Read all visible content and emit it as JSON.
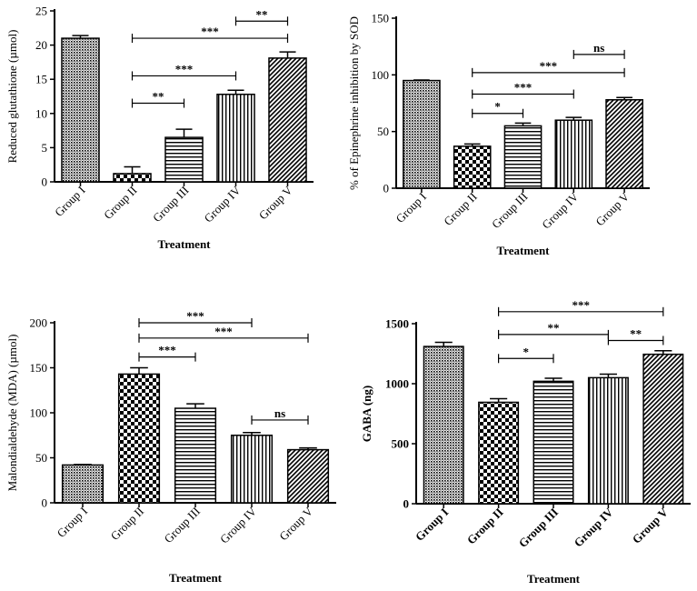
{
  "chart_data": [
    {
      "type": "bar",
      "title": "",
      "xlabel": "Treatment",
      "ylabel": "Reduced glutathione (µmol)",
      "categories": [
        "Group I",
        "Group II",
        "Group III",
        "Group IV",
        "Group V"
      ],
      "values": [
        21.0,
        1.2,
        6.5,
        12.8,
        18.1
      ],
      "errors": [
        0.4,
        1.0,
        1.2,
        0.6,
        0.9
      ],
      "ylim": [
        0,
        25
      ],
      "yticks": [
        0,
        5,
        10,
        15,
        20,
        25
      ],
      "comparisons": [
        {
          "from": 1,
          "to": 2,
          "label": "**",
          "y": 11.5
        },
        {
          "from": 1,
          "to": 3,
          "label": "***",
          "y": 15.5
        },
        {
          "from": 1,
          "to": 4,
          "label": "***",
          "y": 21.0
        },
        {
          "from": 3,
          "to": 4,
          "label": "**",
          "y": 23.5
        }
      ]
    },
    {
      "type": "bar",
      "title": "",
      "xlabel": "Treatment",
      "ylabel": "% of Epinephrine inhibition by SOD",
      "categories": [
        "Group I",
        "Group II",
        "Group III",
        "Group IV",
        "Group V"
      ],
      "values": [
        95,
        37,
        55,
        60,
        78
      ],
      "errors": [
        0.5,
        2,
        2.5,
        2.5,
        2
      ],
      "ylim": [
        0,
        150
      ],
      "yticks": [
        0,
        50,
        100,
        150
      ],
      "comparisons": [
        {
          "from": 1,
          "to": 2,
          "label": "*",
          "y": 66
        },
        {
          "from": 1,
          "to": 3,
          "label": "***",
          "y": 83
        },
        {
          "from": 1,
          "to": 4,
          "label": "***",
          "y": 102
        },
        {
          "from": 3,
          "to": 4,
          "label": "ns",
          "y": 118
        }
      ]
    },
    {
      "type": "bar",
      "title": "",
      "xlabel": "Treatment",
      "ylabel": "Malondialdehyde (MDA) (µmol)",
      "categories": [
        "Group I",
        "Group II",
        "Group III",
        "Group IV",
        "Group V"
      ],
      "values": [
        42,
        143,
        105,
        75,
        59
      ],
      "errors": [
        0.5,
        7,
        5,
        3,
        2
      ],
      "ylim": [
        0,
        200
      ],
      "yticks": [
        0,
        50,
        100,
        150,
        200
      ],
      "comparisons": [
        {
          "from": 1,
          "to": 2,
          "label": "***",
          "y": 162
        },
        {
          "from": 1,
          "to": 3,
          "label": "***",
          "y": 200
        },
        {
          "from": 1,
          "to": 4,
          "label": "***",
          "y": 183
        },
        {
          "from": 3,
          "to": 4,
          "label": "ns",
          "y": 92
        }
      ]
    },
    {
      "type": "bar",
      "title": "",
      "xlabel": "Treatment",
      "ylabel": "GABA (ng)",
      "categories": [
        "Group I",
        "Group II",
        "Group III",
        "Group IV",
        "Group V"
      ],
      "values": [
        1310,
        845,
        1020,
        1050,
        1245
      ],
      "errors": [
        35,
        30,
        25,
        30,
        30
      ],
      "ylim": [
        0,
        1500
      ],
      "yticks": [
        0,
        500,
        1000,
        1500
      ],
      "comparisons": [
        {
          "from": 1,
          "to": 2,
          "label": "*",
          "y": 1210
        },
        {
          "from": 1,
          "to": 3,
          "label": "**",
          "y": 1410
        },
        {
          "from": 1,
          "to": 4,
          "label": "***",
          "y": 1600
        },
        {
          "from": 3,
          "to": 4,
          "label": "**",
          "y": 1360
        }
      ]
    }
  ]
}
